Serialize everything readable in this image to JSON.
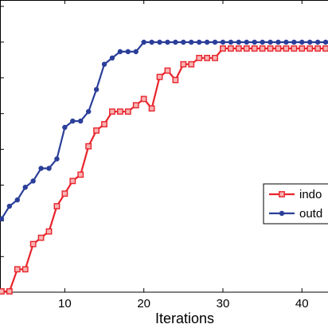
{
  "chart_data": {
    "type": "line",
    "xlabel": "Iterations",
    "ylabel": "",
    "title": "",
    "xlim": [
      1,
      44
    ],
    "x_ticks": [
      10,
      20,
      30,
      40
    ],
    "y_tick_count": 8,
    "grid": false,
    "legend_position": "right",
    "series": [
      {
        "name": "indoor",
        "label_visible": "indo",
        "color": "#e8232a",
        "marker": "square",
        "x": [
          1,
          2,
          3,
          4,
          5,
          6,
          7,
          8,
          9,
          10,
          11,
          12,
          13,
          14,
          15,
          16,
          17,
          18,
          19,
          20,
          21,
          22,
          23,
          24,
          25,
          26,
          27,
          28,
          29,
          30,
          31,
          32,
          33,
          34,
          35,
          36,
          37,
          38,
          39,
          40,
          41,
          42,
          43,
          44
        ],
        "y": [
          -0.07,
          -0.07,
          -0.07,
          0.0,
          0.0,
          0.08,
          0.1,
          0.12,
          0.2,
          0.24,
          0.28,
          0.3,
          0.39,
          0.44,
          0.46,
          0.5,
          0.5,
          0.5,
          0.52,
          0.54,
          0.51,
          0.61,
          0.63,
          0.6,
          0.65,
          0.65,
          0.67,
          0.67,
          0.67,
          0.7,
          0.7,
          0.7,
          0.7,
          0.7,
          0.7,
          0.7,
          0.7,
          0.7,
          0.7,
          0.7,
          0.7,
          0.7,
          0.7,
          0.7
        ]
      },
      {
        "name": "outdoor",
        "label_visible": "outd",
        "color": "#2b3f99",
        "marker": "circle",
        "x": [
          1,
          2,
          3,
          4,
          5,
          6,
          7,
          8,
          9,
          10,
          11,
          12,
          13,
          14,
          15,
          16,
          17,
          18,
          19,
          20,
          21,
          22,
          23,
          24,
          25,
          26,
          27,
          28,
          29,
          30,
          31,
          32,
          33,
          34,
          35,
          36,
          37,
          38,
          39,
          40,
          41,
          42,
          43,
          44
        ],
        "y": [
          0.16,
          0.16,
          0.2,
          0.22,
          0.26,
          0.28,
          0.32,
          0.32,
          0.35,
          0.45,
          0.47,
          0.47,
          0.5,
          0.57,
          0.65,
          0.67,
          0.69,
          0.69,
          0.69,
          0.72,
          0.72,
          0.72,
          0.72,
          0.72,
          0.72,
          0.72,
          0.72,
          0.72,
          0.72,
          0.72,
          0.72,
          0.72,
          0.72,
          0.72,
          0.72,
          0.72,
          0.72,
          0.72,
          0.72,
          0.72,
          0.72,
          0.72,
          0.72,
          0.72
        ]
      }
    ]
  }
}
